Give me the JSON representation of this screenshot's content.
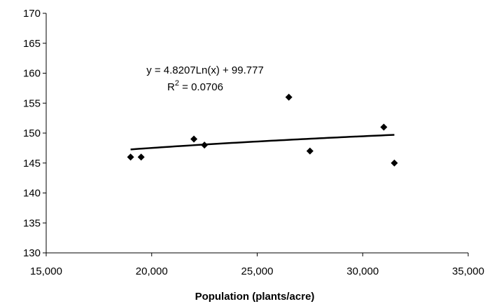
{
  "chart_data": {
    "type": "scatter",
    "title": "",
    "xlabel": "Population (plants/acre)",
    "ylabel": "",
    "xlim": [
      15000,
      35000
    ],
    "ylim": [
      130,
      170
    ],
    "xticks": [
      15000,
      20000,
      25000,
      30000,
      35000
    ],
    "xtick_labels": [
      "15,000",
      "20,000",
      "25,000",
      "30,000",
      "35,000"
    ],
    "yticks": [
      130,
      135,
      140,
      145,
      150,
      155,
      160,
      165,
      170
    ],
    "ytick_labels": [
      "130",
      "135",
      "140",
      "145",
      "150",
      "155",
      "160",
      "165",
      "170"
    ],
    "grid": false,
    "legend": "none",
    "marker": "diamond",
    "point_color": "#000000",
    "points": [
      {
        "x": 19000,
        "y": 146
      },
      {
        "x": 19500,
        "y": 146
      },
      {
        "x": 22000,
        "y": 149
      },
      {
        "x": 22500,
        "y": 148
      },
      {
        "x": 26500,
        "y": 156
      },
      {
        "x": 27500,
        "y": 147
      },
      {
        "x": 31000,
        "y": 151
      },
      {
        "x": 31500,
        "y": 145
      }
    ],
    "trendline": {
      "type": "logarithmic",
      "a": 4.8207,
      "b": 99.777,
      "x_from": 19000,
      "x_to": 31500,
      "color": "#000000",
      "equation": "y = 4.8207Ln(x) + 99.777",
      "r2_prefix": "R",
      "r2_exp": "2",
      "r2_value": " = 0.0706"
    }
  }
}
